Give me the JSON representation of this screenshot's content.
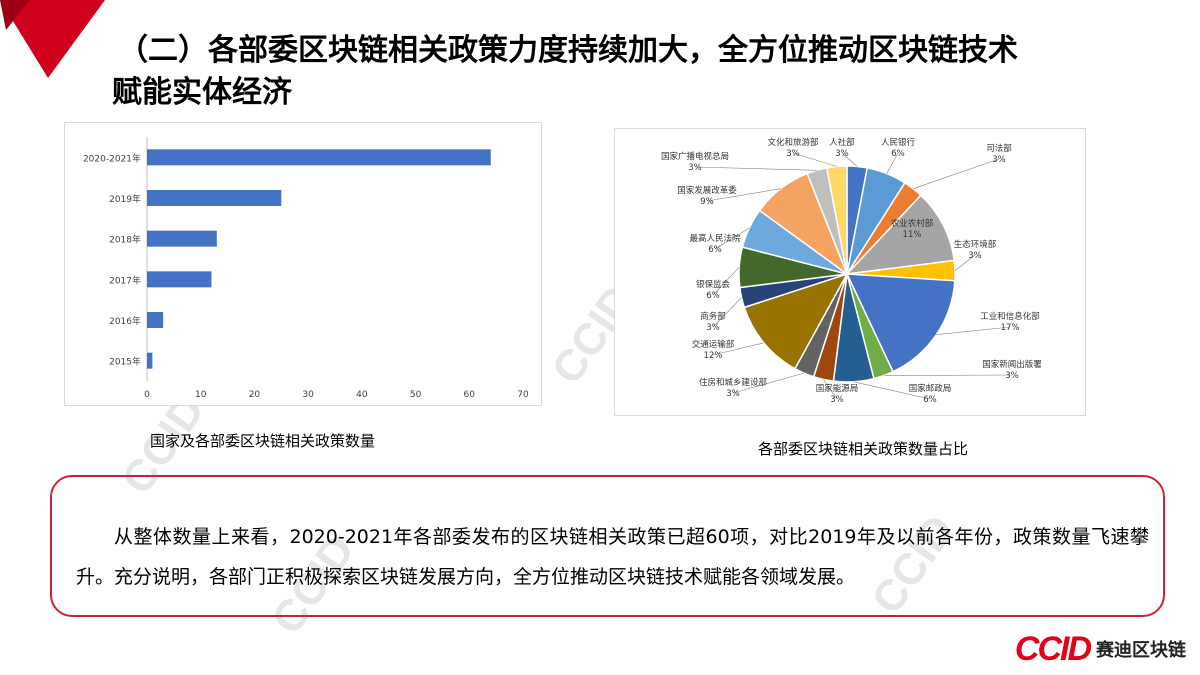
{
  "title": {
    "line1": "（二）各部委区块链相关政策力度持续加大，全方位推动区块链技术",
    "line2": "赋能实体经济"
  },
  "bar_caption": "国家及各部委区块链相关政策数量",
  "pie_caption": "各部委区块链相关政策数量占比",
  "note_text": "从整体数量上来看，2020-2021年各部委发布的区块链相关政策已超60项，对比2019年及以前各年份，政策数量飞速攀升。充分说明，各部门正积极探索区块链发展方向，全方位推动区块链技术赋能各领域发展。",
  "logo": {
    "mark": "CCID",
    "text": "赛迪区块链"
  },
  "watermark": "CCID",
  "colors": {
    "accent": "#c6262e",
    "bar": "#4472c4"
  },
  "chart_data": [
    {
      "type": "bar",
      "orientation": "horizontal",
      "categories": [
        "2020-2021年",
        "2019年",
        "2018年",
        "2017年",
        "2016年",
        "2015年"
      ],
      "values": [
        64,
        25,
        13,
        12,
        3,
        1
      ],
      "xlim": [
        0,
        70
      ],
      "xticks": [
        0,
        10,
        20,
        30,
        40,
        50,
        60,
        70
      ],
      "grid": false,
      "color": "#4472c4"
    },
    {
      "type": "pie",
      "slices": [
        {
          "label": "人社部",
          "pct": "3%",
          "value": 3,
          "color": "#4472c4"
        },
        {
          "label": "人民银行",
          "pct": "6%",
          "value": 6,
          "color": "#5b9bd5"
        },
        {
          "label": "司法部",
          "pct": "3%",
          "value": 3,
          "color": "#ed7d31"
        },
        {
          "label": "农业农村部",
          "pct": "11%",
          "value": 11,
          "color": "#a5a5a5"
        },
        {
          "label": "生态环境部",
          "pct": "3%",
          "value": 3,
          "color": "#ffc000"
        },
        {
          "label": "工业和信息化部",
          "pct": "17%",
          "value": 17,
          "color": "#4472c4"
        },
        {
          "label": "国家新闻出版署",
          "pct": "3%",
          "value": 3,
          "color": "#70ad47"
        },
        {
          "label": "国家邮政局",
          "pct": "6%",
          "value": 6,
          "color": "#255e91"
        },
        {
          "label": "国家能源局",
          "pct": "3%",
          "value": 3,
          "color": "#9e480e"
        },
        {
          "label": "住房和城乡建设部",
          "pct": "3%",
          "value": 3,
          "color": "#636363"
        },
        {
          "label": "交通运输部",
          "pct": "12%",
          "value": 12,
          "color": "#997300"
        },
        {
          "label": "商务部",
          "pct": "3%",
          "value": 3,
          "color": "#264478"
        },
        {
          "label": "银保监会",
          "pct": "6%",
          "value": 6,
          "color": "#43682b"
        },
        {
          "label": "最高人民法院",
          "pct": "6%",
          "value": 6,
          "color": "#6fa8dc"
        },
        {
          "label": "国家发展改革委",
          "pct": "9%",
          "value": 9,
          "color": "#f4a460"
        },
        {
          "label": "国家广播电视总局",
          "pct": "3%",
          "value": 3,
          "color": "#bfbfbf"
        },
        {
          "label": "文化和旅游部",
          "pct": "3%",
          "value": 3,
          "color": "#ffd966"
        }
      ]
    }
  ]
}
